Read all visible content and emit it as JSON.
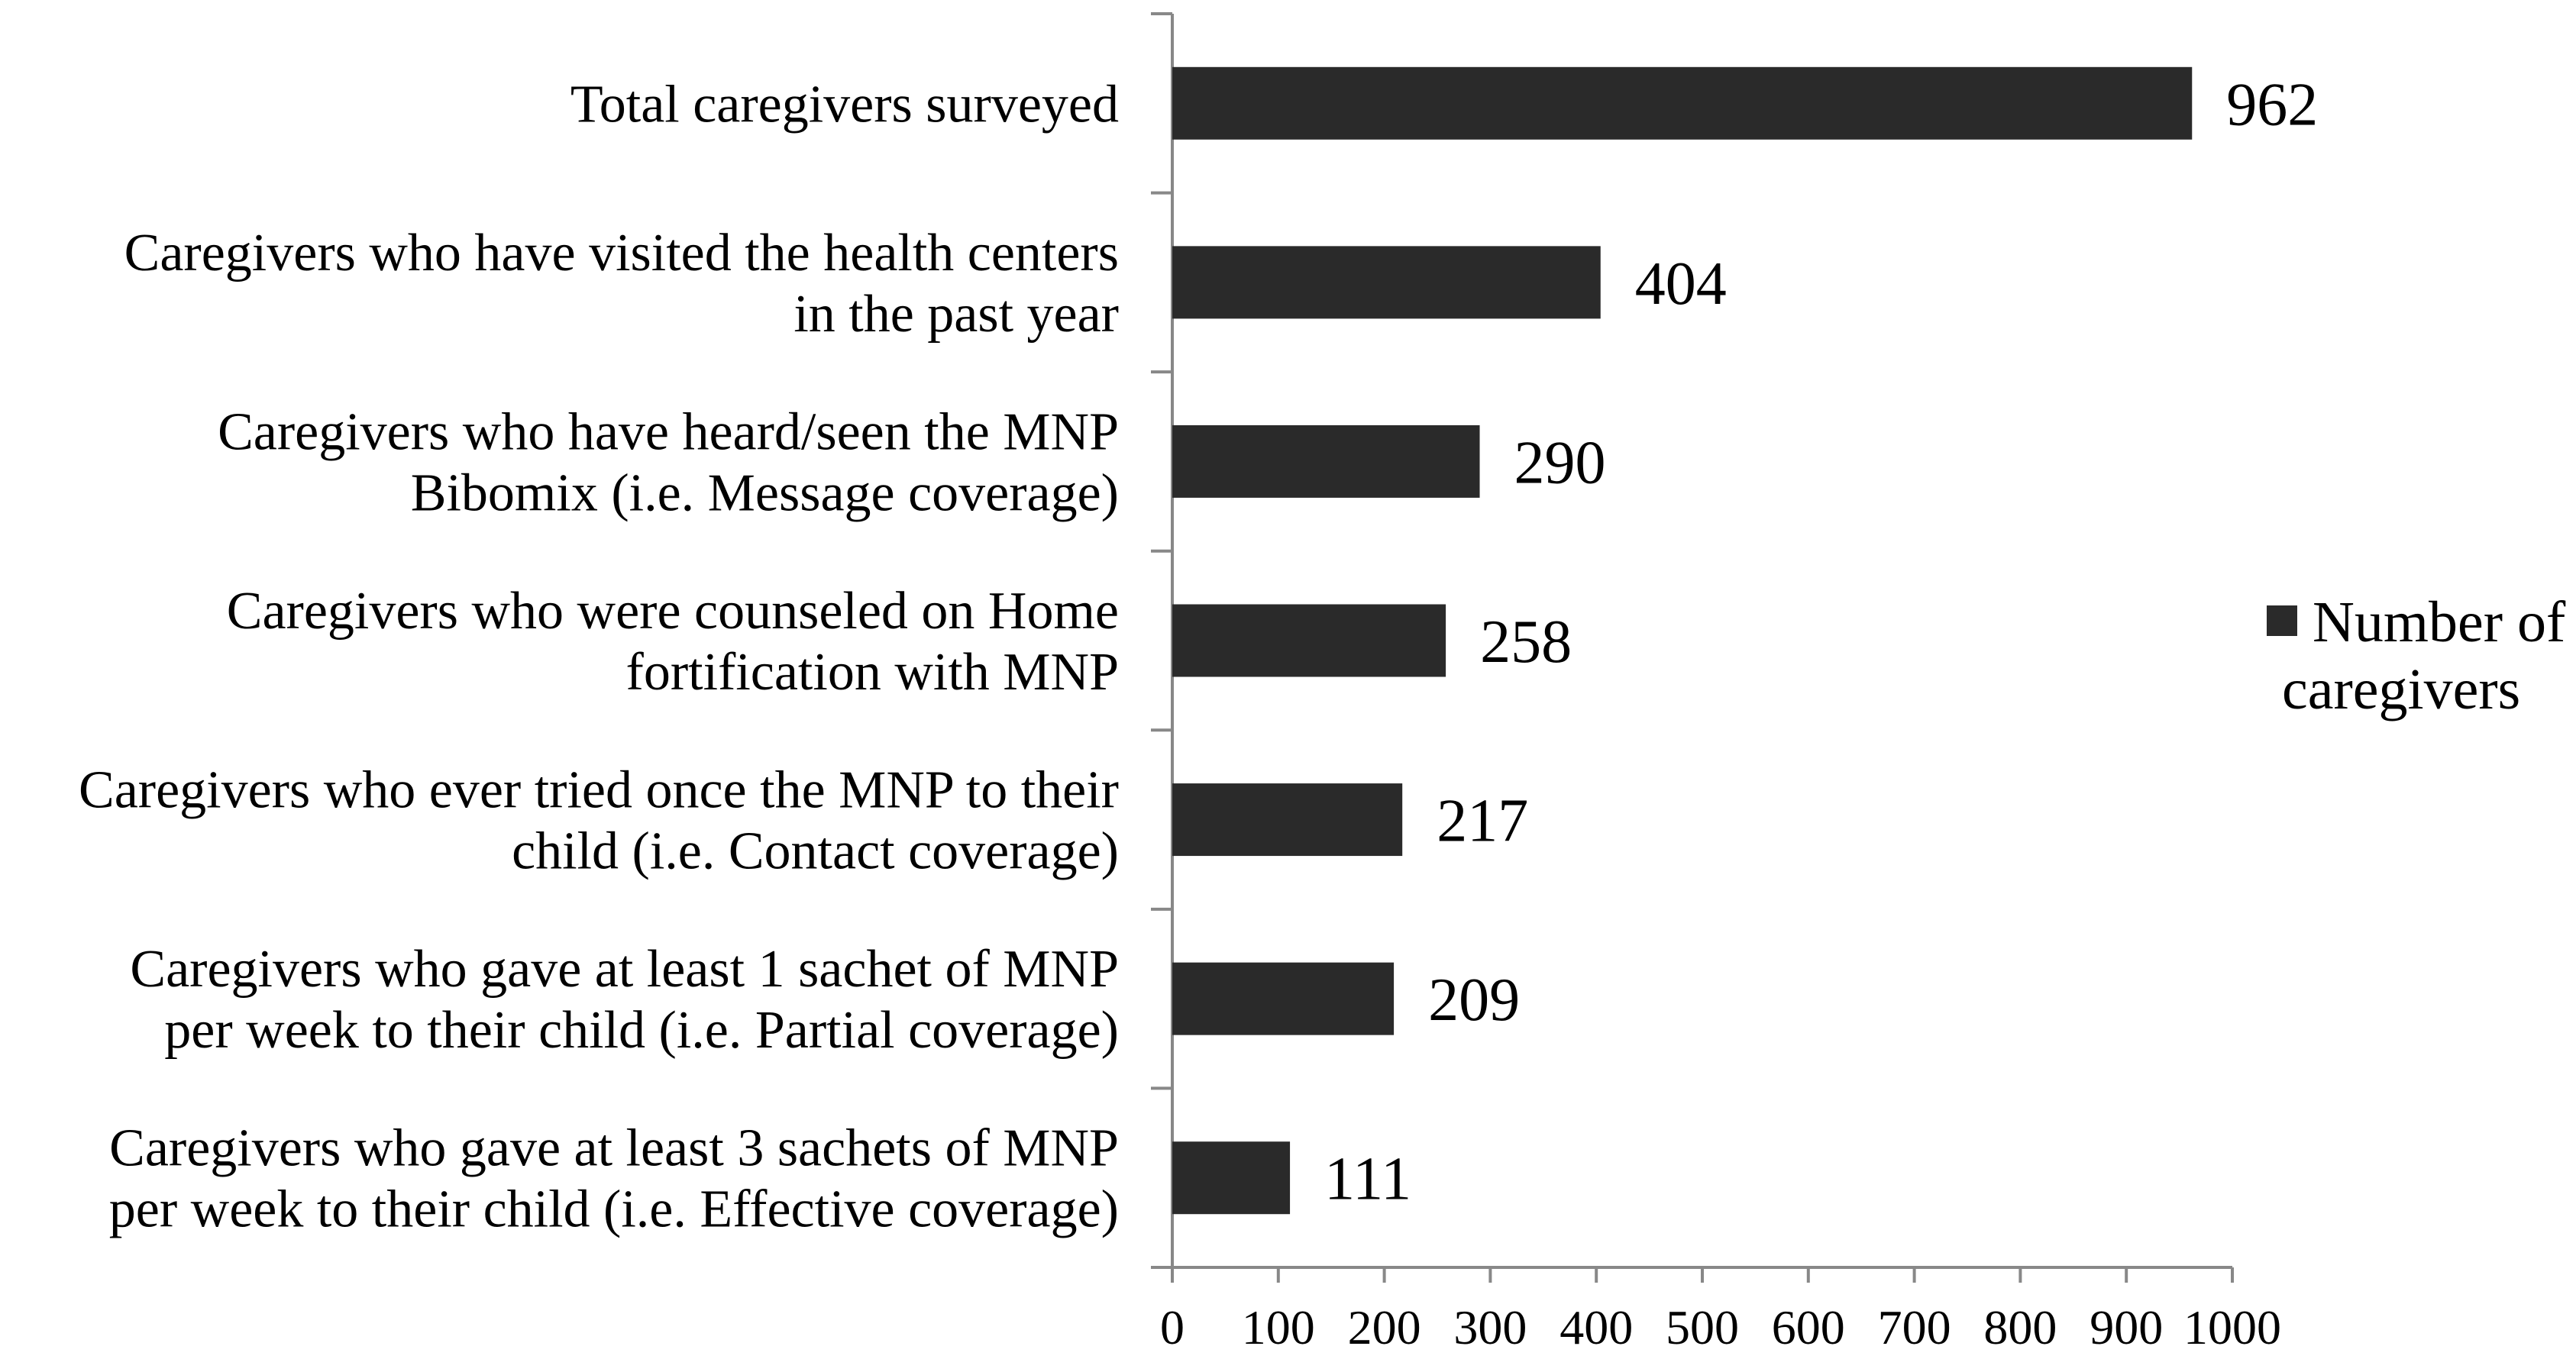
{
  "chart_data": {
    "type": "bar",
    "orientation": "horizontal",
    "title": "",
    "xlabel": "",
    "ylabel": "",
    "xlim": [
      0,
      1000
    ],
    "x_ticks": [
      "0",
      "100",
      "200",
      "300",
      "400",
      "500",
      "600",
      "700",
      "800",
      "900",
      "1000"
    ],
    "grid": false,
    "legend_position": "right",
    "bar_color": "#2a2a2a",
    "series": [
      {
        "name": "Number of caregivers",
        "legend_lines": [
          "Number of",
          "caregivers"
        ],
        "values": [
          962,
          404,
          290,
          258,
          217,
          209,
          111
        ],
        "value_labels": [
          "962",
          "404",
          "290",
          "258",
          "217",
          "209",
          "111"
        ]
      }
    ],
    "categories": [
      {
        "lines": [
          "Total caregivers surveyed"
        ]
      },
      {
        "lines": [
          "Caregivers who have visited the health centers",
          "in the past year"
        ]
      },
      {
        "lines": [
          "Caregivers who have heard/seen the MNP",
          "Bibomix (i.e. Message coverage)"
        ]
      },
      {
        "lines": [
          "Caregivers who were counseled  on Home",
          "fortification with MNP"
        ]
      },
      {
        "lines": [
          "Caregivers who ever tried once the MNP to their",
          "child (i.e. Contact coverage)"
        ]
      },
      {
        "lines": [
          "Caregivers who gave at least 1 sachet of MNP",
          "per week to their child (i.e. Partial coverage)"
        ]
      },
      {
        "lines": [
          "Caregivers who gave at least 3 sachets of MNP",
          "per week to their child (i.e. Effective coverage)"
        ]
      }
    ]
  }
}
